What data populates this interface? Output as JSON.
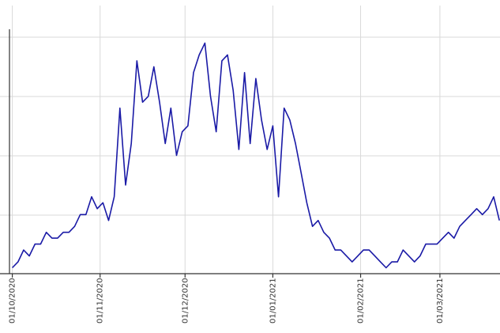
{
  "chart_data": {
    "type": "line",
    "title": "",
    "xlabel": "",
    "ylabel": "",
    "grid": true,
    "legend": "none",
    "colors": {
      "series": "#1a1aa6",
      "grid": "#d9d9d9",
      "axis": "#333333"
    },
    "x_ticks": [
      "01/10/2020",
      "01/11/2020",
      "01/12/2020",
      "01/01/2021",
      "01/02/2021",
      "01/03/2021"
    ],
    "ylim": [
      0,
      4
    ],
    "series": [
      {
        "x": [
          "2020-10-01",
          "2020-10-03",
          "2020-10-05",
          "2020-10-07",
          "2020-10-09",
          "2020-10-11",
          "2020-10-13",
          "2020-10-15",
          "2020-10-17",
          "2020-10-19",
          "2020-10-21",
          "2020-10-23",
          "2020-10-25",
          "2020-10-27",
          "2020-10-29",
          "2020-10-31",
          "2020-11-02",
          "2020-11-04",
          "2020-11-06",
          "2020-11-08",
          "2020-11-10",
          "2020-11-12",
          "2020-11-14",
          "2020-11-16",
          "2020-11-18",
          "2020-11-20",
          "2020-11-22",
          "2020-11-24",
          "2020-11-26",
          "2020-11-28",
          "2020-11-30",
          "2020-12-02",
          "2020-12-04",
          "2020-12-06",
          "2020-12-08",
          "2020-12-10",
          "2020-12-12",
          "2020-12-14",
          "2020-12-16",
          "2020-12-18",
          "2020-12-20",
          "2020-12-22",
          "2020-12-24",
          "2020-12-26",
          "2020-12-28",
          "2020-12-30",
          "2021-01-01",
          "2021-01-03",
          "2021-01-05",
          "2021-01-07",
          "2021-01-09",
          "2021-01-11",
          "2021-01-13",
          "2021-01-15",
          "2021-01-17",
          "2021-01-19",
          "2021-01-21",
          "2021-01-23",
          "2021-01-25",
          "2021-01-27",
          "2021-01-29",
          "2021-01-31",
          "2021-02-02",
          "2021-02-04",
          "2021-02-06",
          "2021-02-08",
          "2021-02-10",
          "2021-02-12",
          "2021-02-14",
          "2021-02-16",
          "2021-02-18",
          "2021-02-20",
          "2021-02-22",
          "2021-02-24",
          "2021-02-26",
          "2021-02-28",
          "2021-03-02",
          "2021-03-04",
          "2021-03-06",
          "2021-03-08",
          "2021-03-10",
          "2021-03-12",
          "2021-03-14",
          "2021-03-16",
          "2021-03-18",
          "2021-03-20",
          "2021-03-22",
          "2021-03-24",
          "2021-03-26",
          "2021-03-28",
          "2021-03-30",
          "2021-04-01",
          "2021-04-03",
          "2021-04-05"
        ],
        "values": [
          0.1,
          0.2,
          0.4,
          0.3,
          0.5,
          0.5,
          0.7,
          0.6,
          0.6,
          0.7,
          0.7,
          0.8,
          1.0,
          1.0,
          1.3,
          1.1,
          1.2,
          0.9,
          1.3,
          2.8,
          1.5,
          2.2,
          3.6,
          2.9,
          3.0,
          3.5,
          2.9,
          2.2,
          2.8,
          2.0,
          2.4,
          2.5,
          3.4,
          3.7,
          3.9,
          3.0,
          2.4,
          3.6,
          3.7,
          3.1,
          2.1,
          3.4,
          2.2,
          3.3,
          2.6,
          2.1,
          2.5,
          1.3,
          2.8,
          2.6,
          2.2,
          1.7,
          1.2,
          0.8,
          0.9,
          0.7,
          0.6,
          0.4,
          0.4,
          0.3,
          0.2,
          0.3,
          0.4,
          0.4,
          0.3,
          0.2,
          0.1,
          0.2,
          0.2,
          0.4,
          0.3,
          0.2,
          0.3,
          0.5,
          0.5,
          0.5,
          0.6,
          0.7,
          0.6,
          0.8,
          0.9,
          1.0,
          1.1,
          1.0,
          1.1,
          1.3,
          0.9,
          1.2,
          1.3,
          1.4,
          1.0,
          0.8,
          1.3,
          1.2
        ]
      }
    ]
  }
}
